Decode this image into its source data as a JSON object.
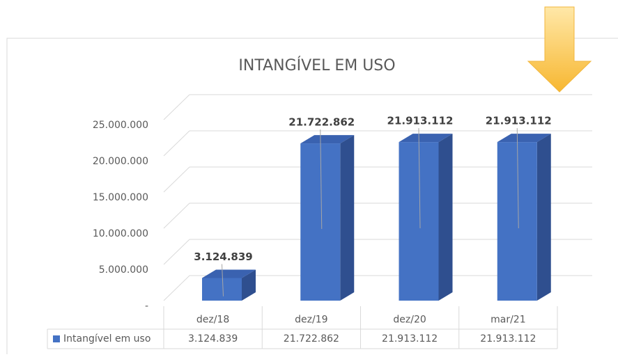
{
  "chart_data": {
    "type": "bar3d",
    "title": "INTANGÍVEL EM USO",
    "categories": [
      "dez/18",
      "dez/19",
      "dez/20",
      "mar/21"
    ],
    "series": [
      {
        "name": "Intangível em uso",
        "color": "#4472c4",
        "values": [
          3124839,
          21722862,
          21913112,
          21913112
        ],
        "value_labels": [
          "3.124.839",
          "21.722.862",
          "21.913.112",
          "21.913.112"
        ]
      }
    ],
    "ylim": [
      0,
      25000000
    ],
    "yticks": [
      {
        "value": 0,
        "label": "-"
      },
      {
        "value": 5000000,
        "label": "5.000.000"
      },
      {
        "value": 10000000,
        "label": "10.000.000"
      },
      {
        "value": 15000000,
        "label": "15.000.000"
      },
      {
        "value": 20000000,
        "label": "20.000.000"
      },
      {
        "value": 25000000,
        "label": "25.000.000"
      }
    ],
    "grid": true,
    "data_table": true
  }
}
